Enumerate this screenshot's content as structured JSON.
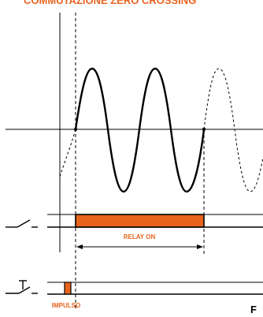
{
  "header": {
    "title": "COMMUTAZIONE ZERO CROSSING"
  },
  "labels": {
    "relay_on": "RELAY ON",
    "impulse": "IMPULSO",
    "corner_char": "F"
  },
  "colors": {
    "accent": "#e8641e",
    "line": "#000000",
    "background": "#ffffff"
  },
  "icons": {
    "relay_contact": "relay-contact-icon",
    "pushbutton": "pushbutton-icon"
  }
}
